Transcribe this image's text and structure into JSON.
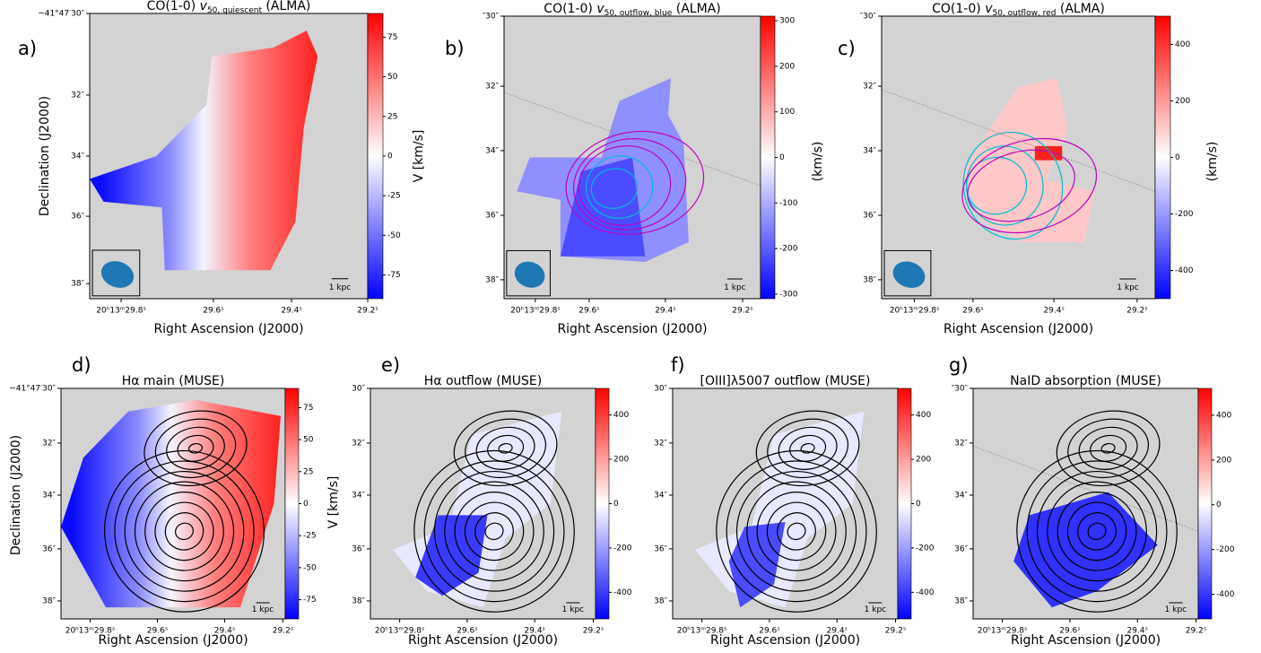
{
  "panels": [
    {
      "letter": "a)",
      "title_main": "CO(1-0) ",
      "title_var": "v",
      "title_sub": "50, quiescent",
      "title_end": " (ALMA)",
      "xlabel": "Right Ascension (J2000)",
      "ylabel": "Declination (J2000)",
      "xticks": [
        "20ʰ13ᵐ29.8ˢ",
        "29.6ˢ",
        "29.4ˢ",
        "29.2ˢ"
      ],
      "yticks": [
        "−41°47′30″",
        "32″",
        "34″",
        "36″",
        "38″"
      ],
      "colorbar": {
        "label": "V [km/s]",
        "lim": [
          -90,
          90
        ],
        "ticks": [
          75,
          50,
          25,
          0,
          -25,
          -50,
          -75
        ]
      },
      "scale": "1 kpc"
    },
    {
      "letter": "b)",
      "title_main": "CO(1-0) ",
      "title_var": "v",
      "title_sub": "50, outflow, blue",
      "title_end": " (ALMA)",
      "xlabel": "Right Ascension (J2000)",
      "xticks": [
        "20ʰ13ᵐ29.8ˢ",
        "29.6ˢ",
        "29.4ˢ",
        "29.2ˢ"
      ],
      "yticks": [
        "″30″",
        "32″",
        "34″",
        "36″",
        "38″"
      ],
      "colorbar": {
        "label": "(km/s)",
        "lim": [
          -310,
          310
        ],
        "ticks": [
          300,
          200,
          100,
          0,
          -100,
          -200,
          -300
        ]
      },
      "scale": "1 kpc"
    },
    {
      "letter": "c)",
      "title_main": "CO(1-0) ",
      "title_var": "v",
      "title_sub": "50, outflow, red",
      "title_end": " (ALMA)",
      "xlabel": "Right Ascension (J2000)",
      "xticks": [
        "20ʰ13ᵐ29.8ˢ",
        "29.6ˢ",
        "29.4ˢ",
        "29.2ˢ"
      ],
      "yticks": [
        "″30″",
        "32″",
        "34″",
        "36″",
        "38″"
      ],
      "colorbar": {
        "label": "(km/s)",
        "lim": [
          -500,
          500
        ],
        "ticks": [
          400,
          200,
          0,
          -200,
          -400
        ]
      },
      "scale": "1 kpc"
    },
    {
      "letter": "d)",
      "title": "Hα main  (MUSE)",
      "xlabel": "Right Ascension (J2000)",
      "ylabel": "Declination (J2000)",
      "xticks": [
        "20ʰ13ᵐ29.8ˢ",
        "29.6ˢ",
        "29.4ˢ",
        "29.2ˢ"
      ],
      "yticks": [
        "−41°47′30″",
        "32″",
        "34″",
        "36″",
        "38″"
      ],
      "colorbar": {
        "label": "V [km/s]",
        "lim": [
          -90,
          90
        ],
        "ticks": [
          75,
          50,
          25,
          0,
          -25,
          -50,
          -75
        ]
      },
      "scale": "1 kpc"
    },
    {
      "letter": "e)",
      "title": "Hα outflow (MUSE)",
      "xlabel": "Right Ascension (J2000)",
      "xticks": [
        "20ʰ13ᵐ29.8ˢ",
        "29.6ˢ",
        "29.4ˢ",
        "29.2ˢ"
      ],
      "yticks": [
        "30″",
        "32″",
        "34″",
        "36″",
        "38″"
      ],
      "colorbar": {
        "lim": [
          -520,
          520
        ],
        "ticks": [
          400,
          200,
          0,
          -200,
          -400
        ]
      },
      "scale": "1 kpc"
    },
    {
      "letter": "f)",
      "title": "[OIII]λ5007 outflow (MUSE)",
      "xlabel": "Right Ascension (J2000)",
      "xticks": [
        "20ʰ13ᵐ29.8ˢ",
        "29.6ˢ",
        "29.4ˢ",
        "29.2ˢ"
      ],
      "yticks": [
        "30″",
        "32″",
        "34″",
        "36″",
        "38″"
      ],
      "colorbar": {
        "lim": [
          -520,
          520
        ],
        "ticks": [
          400,
          200,
          0,
          -200,
          -400
        ]
      },
      "scale": "1 kpc"
    },
    {
      "letter": "g)",
      "title": "NaID absorption (MUSE)",
      "xlabel": "Right Ascension (J2000)",
      "xticks": [
        "20ʰ13ᵐ29.8ˢ",
        "29.6ˢ",
        "29.4ˢ",
        "29.2ˢ"
      ],
      "yticks": [
        "″30″",
        "32″",
        "34″",
        "36″",
        "38″"
      ],
      "colorbar": {
        "lim": [
          -510,
          520
        ],
        "ticks": [
          400,
          200,
          0,
          -200,
          -400
        ]
      },
      "scale": "1 kpc"
    }
  ]
}
